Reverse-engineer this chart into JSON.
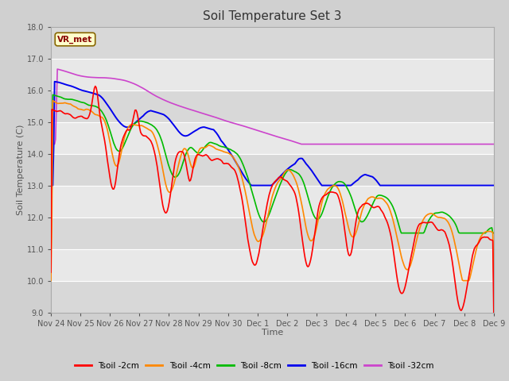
{
  "title": "Soil Temperature Set 3",
  "xlabel": "Time",
  "ylabel": "Soil Temperature (C)",
  "ylim": [
    9.0,
    18.0
  ],
  "yticks": [
    9.0,
    10.0,
    11.0,
    12.0,
    13.0,
    14.0,
    15.0,
    16.0,
    17.0,
    18.0
  ],
  "xtick_labels": [
    "Nov 24",
    "Nov 25",
    "Nov 26",
    "Nov 27",
    "Nov 28",
    "Nov 29",
    "Nov 30",
    "Dec 1",
    "Dec 2",
    "Dec 3",
    "Dec 4",
    "Dec 5",
    "Dec 6",
    "Dec 7",
    "Dec 8",
    "Dec 9"
  ],
  "colors": {
    "Tsoil -2cm": "#ff0000",
    "Tsoil -4cm": "#ff8800",
    "Tsoil -8cm": "#00bb00",
    "Tsoil -16cm": "#0000ee",
    "Tsoil -32cm": "#cc44cc"
  },
  "legend_label": "VR_met",
  "legend_box_facecolor": "#ffffcc",
  "legend_box_edgecolor": "#886600",
  "fig_facecolor": "#d0d0d0",
  "ax_facecolor": "#e8e8e8",
  "grid_color": "#ffffff",
  "n_points": 480
}
